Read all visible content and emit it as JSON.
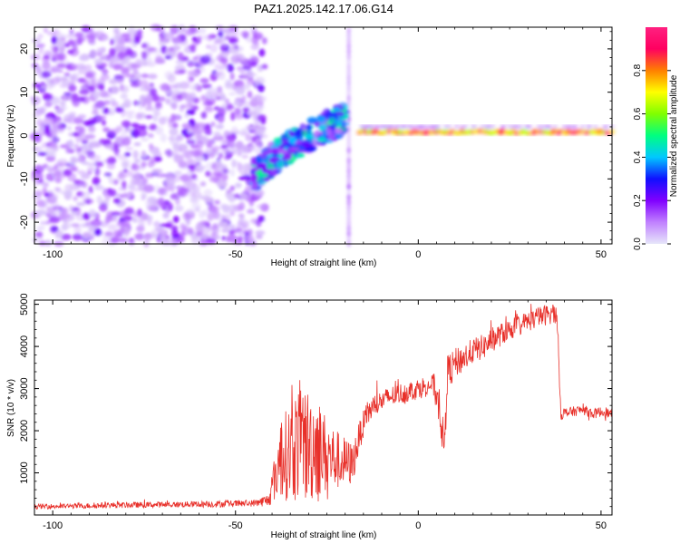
{
  "title": "PAZ1.2025.142.17.06.G14",
  "chart_data": [
    {
      "type": "heatmap",
      "title": "PAZ1.2025.142.17.06.G14",
      "xlabel": "Height of straight line (km)",
      "ylabel": "Frequency (Hz)",
      "xlim": [
        -105,
        53
      ],
      "ylim": [
        -25,
        25
      ],
      "xticks": [
        -100,
        -50,
        0,
        50
      ],
      "yticks": [
        -20,
        -10,
        0,
        10,
        20
      ],
      "colorbar": {
        "label": "Normalized spectral amplitude",
        "range": [
          0.0,
          1.0
        ],
        "ticks": [
          0.0,
          0.2,
          0.4,
          0.6,
          0.8
        ],
        "colormap": [
          "#e6e6fa",
          "#c080ff",
          "#8000ff",
          "#1010ff",
          "#00c8ff",
          "#00ff80",
          "#80ff00",
          "#ffff00",
          "#ff8000",
          "#ff0060",
          "#ff2080"
        ]
      },
      "regions": [
        {
          "name": "noise",
          "x_range": [
            -105,
            -42
          ],
          "freq_range": [
            -25,
            25
          ],
          "amplitude_range": [
            0.0,
            0.2
          ]
        },
        {
          "name": "transition",
          "x_range": [
            -45,
            -20
          ],
          "freq_start": -10,
          "freq_end": 4,
          "amplitude_range": [
            0.1,
            0.5
          ]
        },
        {
          "name": "vertical artifact",
          "x_value": -19,
          "freq_range": [
            -25,
            25
          ],
          "amplitude_range": [
            0.0,
            0.1
          ]
        },
        {
          "name": "tone",
          "x_range": [
            -16,
            53
          ],
          "freq_value": 0.8,
          "amplitude_range": [
            0.6,
            1.0
          ]
        }
      ]
    },
    {
      "type": "line",
      "xlabel": "Height of straight line (km)",
      "ylabel": "SNR (10 * v/v)",
      "xlim": [
        -105,
        53
      ],
      "ylim": [
        0,
        5100
      ],
      "xticks": [
        -100,
        -50,
        0,
        50
      ],
      "yticks": [
        1000,
        2000,
        3000,
        4000,
        5000
      ],
      "color": "#e8302a",
      "x": [
        -105,
        -95,
        -85,
        -75,
        -65,
        -55,
        -45,
        -41,
        -38,
        -35,
        -32,
        -30,
        -28,
        -25,
        -22,
        -20,
        -18,
        -16,
        -14,
        -12,
        -10,
        -8,
        -6,
        -4,
        -2,
        0,
        2,
        4,
        6,
        7,
        8,
        10,
        12,
        15,
        18,
        20,
        25,
        30,
        35,
        37,
        38,
        39,
        42,
        45,
        48,
        50,
        53
      ],
      "y": [
        200,
        210,
        230,
        240,
        250,
        260,
        280,
        350,
        1300,
        1500,
        1800,
        1600,
        1700,
        1400,
        1300,
        1250,
        1200,
        1900,
        2400,
        2600,
        2700,
        2800,
        2850,
        2900,
        2950,
        3000,
        3050,
        3100,
        2600,
        1500,
        3400,
        3600,
        3700,
        3900,
        4000,
        4150,
        4400,
        4600,
        4750,
        4800,
        4700,
        2400,
        2450,
        2500,
        2400,
        2450,
        2400
      ],
      "noise_amplitude": [
        60,
        60,
        70,
        70,
        70,
        80,
        80,
        150,
        900,
        1200,
        1500,
        1400,
        1300,
        900,
        700,
        600,
        500,
        350,
        300,
        300,
        250,
        250,
        250,
        250,
        250,
        250,
        250,
        250,
        600,
        500,
        400,
        350,
        350,
        300,
        300,
        300,
        250,
        250,
        250,
        250,
        250,
        150,
        120,
        120,
        120,
        120,
        120
      ]
    }
  ]
}
